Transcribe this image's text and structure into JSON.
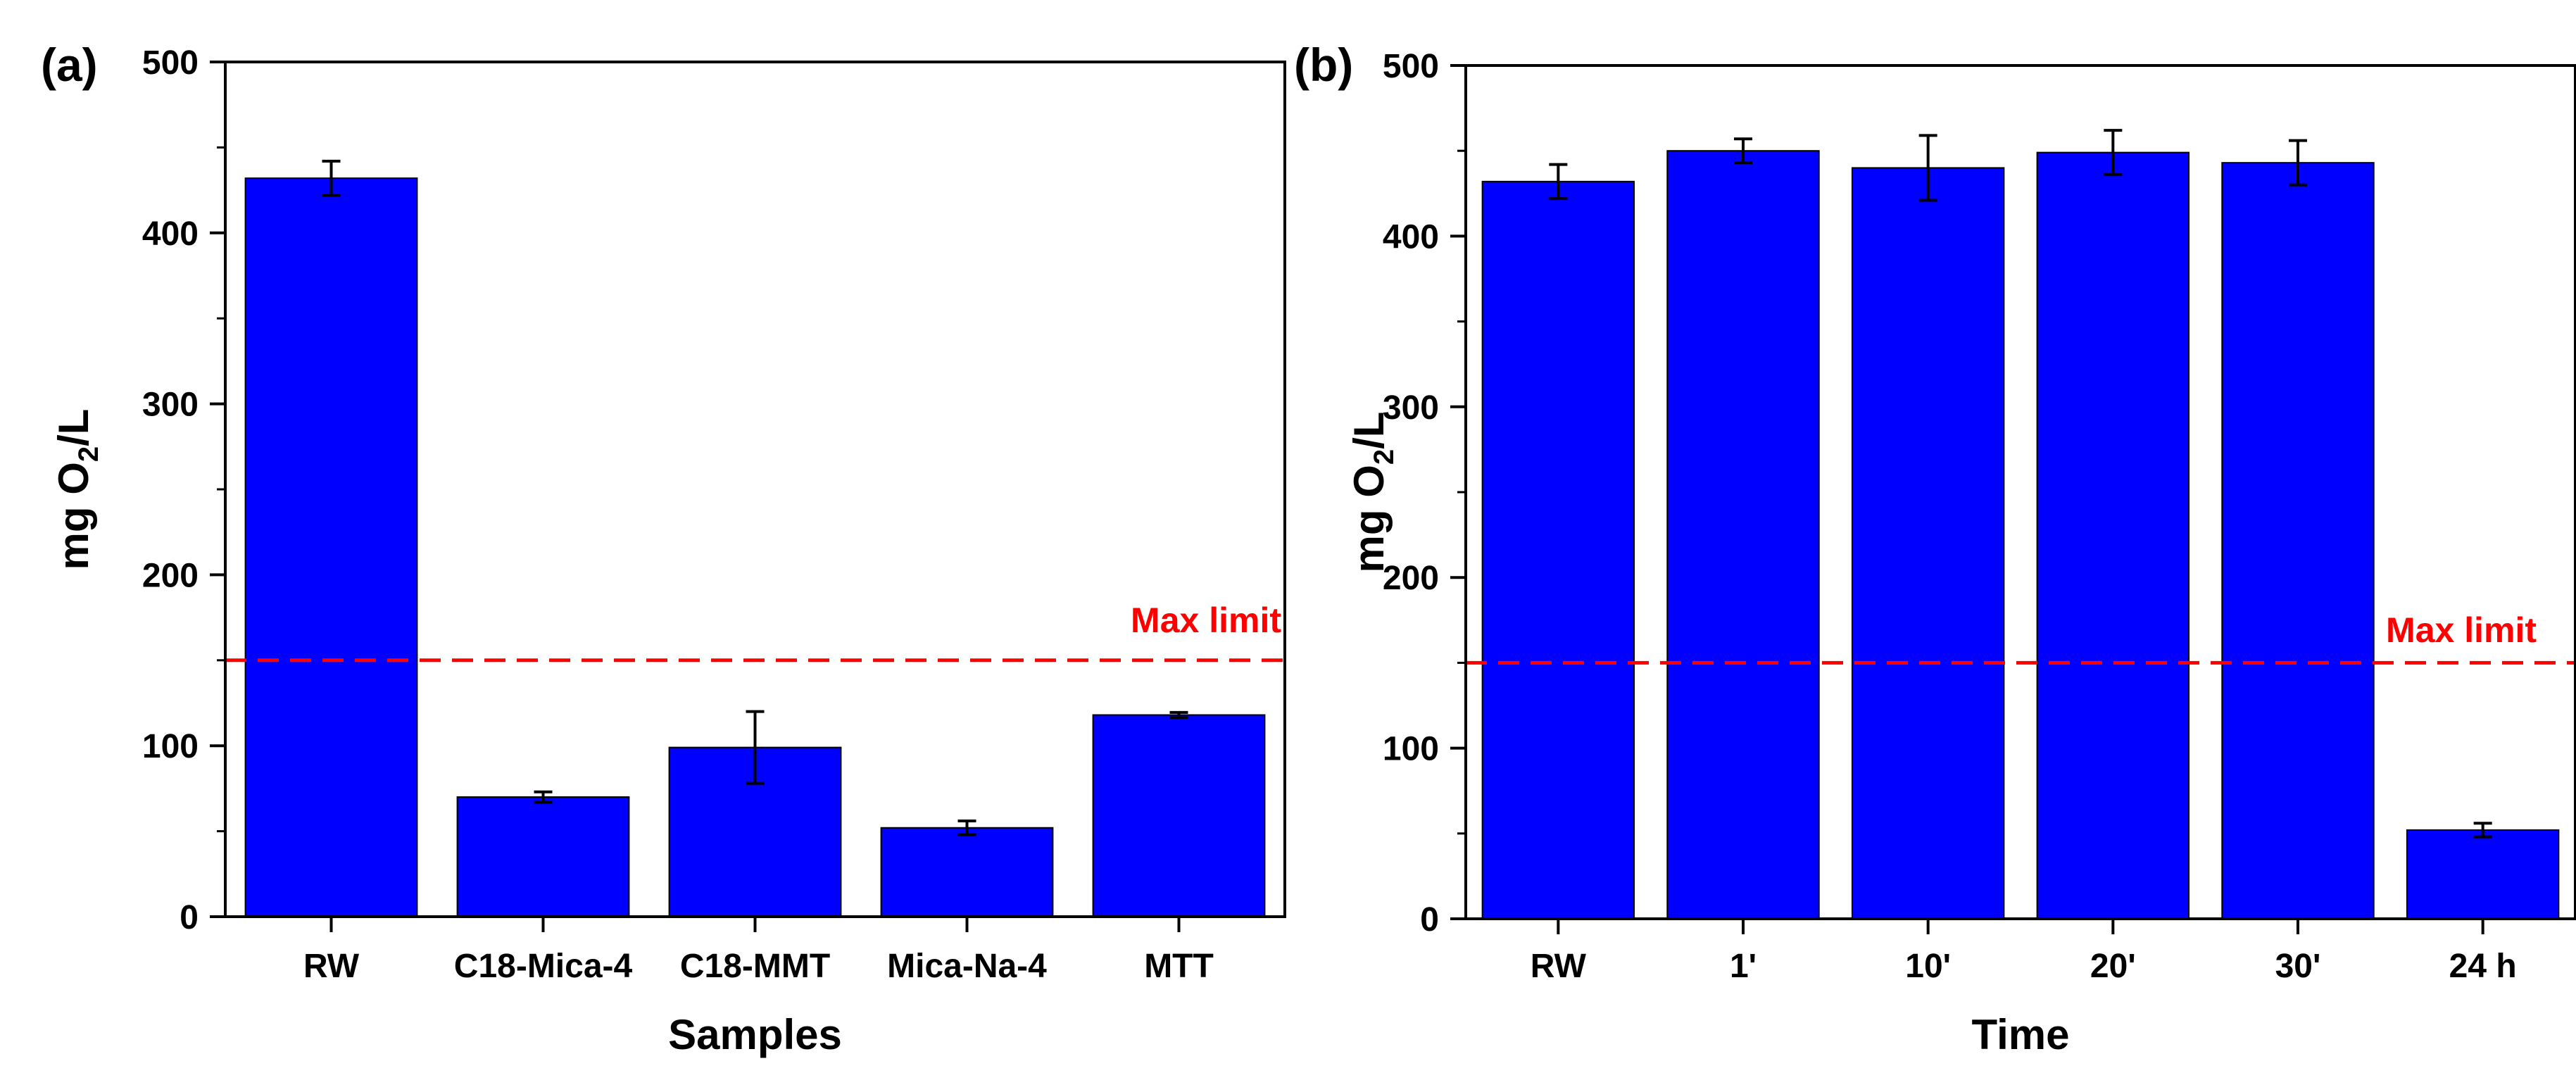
{
  "chart_data": [
    {
      "type": "bar",
      "panel_label": "(a)",
      "categories": [
        "RW",
        "C18-Mica-4",
        "C18-MMT",
        "Mica-Na-4",
        "MTT"
      ],
      "values": [
        432,
        70,
        99,
        52,
        118
      ],
      "errors": [
        10,
        3,
        21,
        4,
        1.5
      ],
      "title": "",
      "xlabel": "Samples",
      "ylabel": "mg O",
      "ylabel_subscript": "2",
      "ylabel_suffix": "/L",
      "ylim": [
        0,
        500
      ],
      "yticks": [
        "0",
        "100",
        "200",
        "300",
        "400",
        "500"
      ],
      "grid": false,
      "reference_line": {
        "value": 150,
        "label": "Max limit",
        "color": "#ff0000",
        "style": "dashed"
      },
      "bar_color": "#0000ff"
    },
    {
      "type": "bar",
      "panel_label": "(b)",
      "categories": [
        "RW",
        "1'",
        "10'",
        "20'",
        "30'",
        "24 h"
      ],
      "values": [
        432,
        450,
        440,
        449,
        443,
        52
      ],
      "errors": [
        10,
        7,
        19,
        13,
        13,
        4
      ],
      "title": "",
      "xlabel": "Time",
      "ylabel": "mg O",
      "ylabel_subscript": "2",
      "ylabel_suffix": "/L",
      "ylim": [
        0,
        500
      ],
      "yticks": [
        "0",
        "100",
        "200",
        "300",
        "400",
        "500"
      ],
      "grid": false,
      "reference_line": {
        "value": 150,
        "label": "Max limit",
        "color": "#ff0000",
        "style": "dashed"
      },
      "bar_color": "#0000ff"
    }
  ]
}
